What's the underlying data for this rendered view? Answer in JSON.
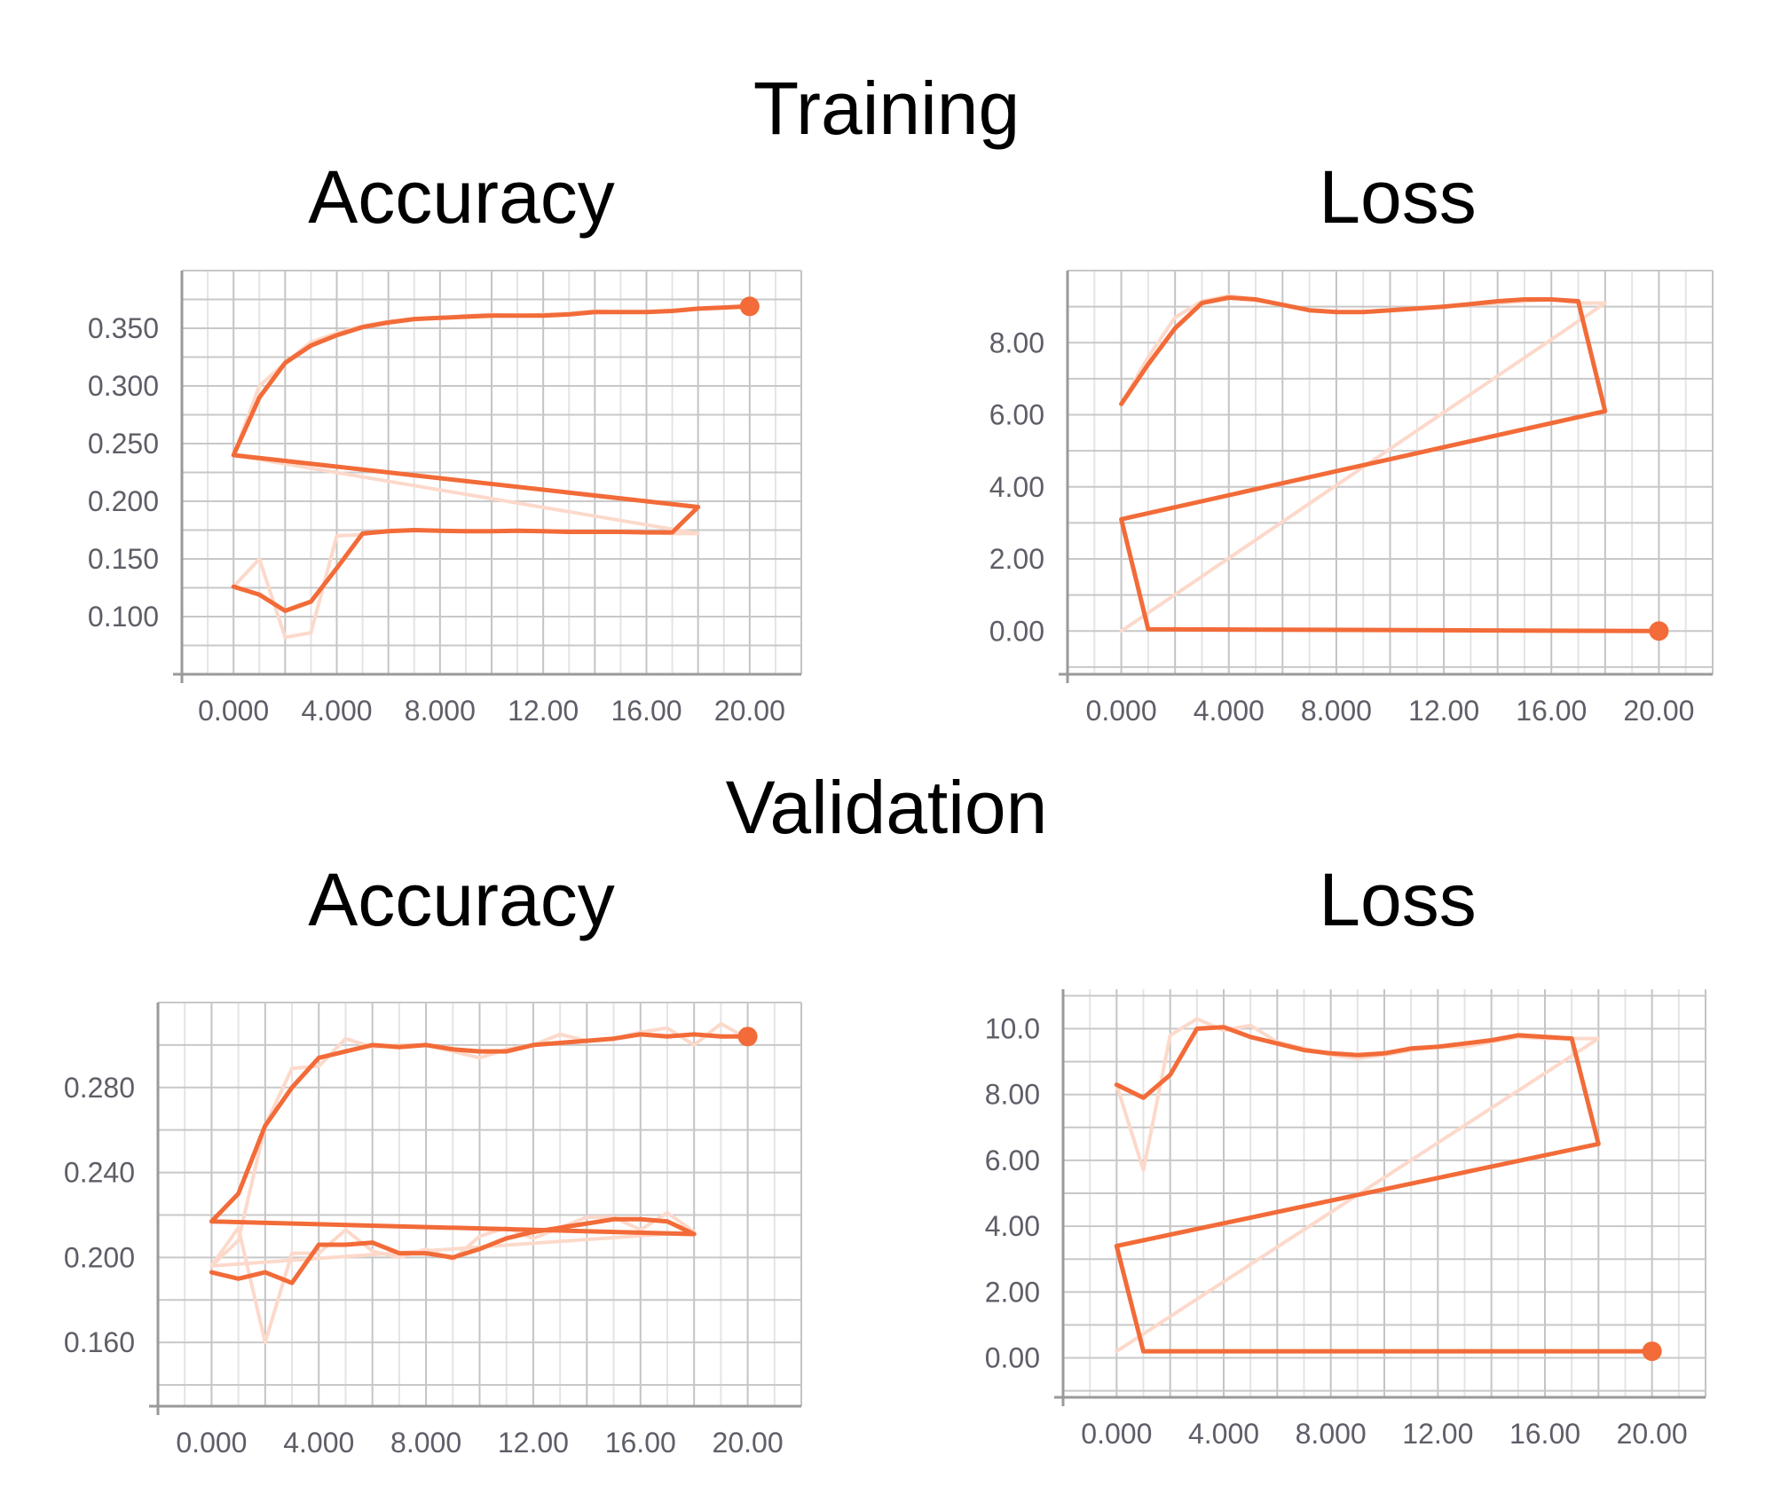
{
  "sections": {
    "training": "Training",
    "validation": "Validation"
  },
  "colors": {
    "accent": "#f26b38",
    "accent_light": "#fcd9cb",
    "grid": "#d0d0d0",
    "axis": "#9a9a9a"
  },
  "chart_data": [
    {
      "type": "line",
      "section": "Training",
      "title": "Accuracy",
      "xlim": [
        -2,
        22
      ],
      "ylim": [
        0.05,
        0.4
      ],
      "xticks": [
        "0.000",
        "4.000",
        "8.000",
        "12.00",
        "16.00",
        "20.00"
      ],
      "yticks": [
        "0.100",
        "0.150",
        "0.200",
        "0.250",
        "0.300",
        "0.350"
      ],
      "grid": true,
      "series": [
        {
          "role": "smoothed",
          "points": [
            [
              0,
              0.126
            ],
            [
              1,
              0.119
            ],
            [
              2,
              0.105
            ],
            [
              3,
              0.113
            ],
            [
              4,
              0.142
            ],
            [
              5,
              0.172
            ],
            [
              6,
              0.174
            ],
            [
              7,
              0.175
            ],
            [
              8,
              0.1745
            ],
            [
              9,
              0.174
            ],
            [
              10,
              0.174
            ],
            [
              11,
              0.1745
            ],
            [
              12,
              0.174
            ],
            [
              13,
              0.1735
            ],
            [
              14,
              0.1735
            ],
            [
              15,
              0.1735
            ],
            [
              16,
              0.173
            ],
            [
              17,
              0.173
            ],
            [
              18,
              0.195
            ],
            [
              0,
              0.24
            ],
            [
              1,
              0.29
            ],
            [
              2,
              0.32
            ],
            [
              3,
              0.335
            ],
            [
              4,
              0.344
            ],
            [
              5,
              0.351
            ],
            [
              6,
              0.355
            ],
            [
              7,
              0.358
            ],
            [
              8,
              0.359
            ],
            [
              9,
              0.36
            ],
            [
              10,
              0.361
            ],
            [
              11,
              0.361
            ],
            [
              12,
              0.361
            ],
            [
              13,
              0.362
            ],
            [
              14,
              0.364
            ],
            [
              15,
              0.364
            ],
            [
              16,
              0.364
            ],
            [
              17,
              0.365
            ],
            [
              18,
              0.367
            ],
            [
              19,
              0.368
            ],
            [
              20,
              0.369
            ]
          ]
        },
        {
          "role": "raw",
          "points": [
            [
              0,
              0.126
            ],
            [
              1,
              0.15
            ],
            [
              2,
              0.082
            ],
            [
              3,
              0.086
            ],
            [
              4,
              0.17
            ],
            [
              5,
              0.171
            ],
            [
              6,
              0.175
            ],
            [
              7,
              0.175
            ],
            [
              8,
              0.174
            ],
            [
              9,
              0.174
            ],
            [
              10,
              0.174
            ],
            [
              11,
              0.175
            ],
            [
              12,
              0.174
            ],
            [
              13,
              0.173
            ],
            [
              14,
              0.173
            ],
            [
              15,
              0.174
            ],
            [
              16,
              0.173
            ],
            [
              17,
              0.172
            ],
            [
              18,
              0.172
            ],
            [
              0,
              0.24
            ],
            [
              1,
              0.3
            ],
            [
              2,
              0.32
            ],
            [
              3,
              0.338
            ],
            [
              4,
              0.346
            ],
            [
              5,
              0.352
            ],
            [
              6,
              0.356
            ],
            [
              7,
              0.358
            ],
            [
              8,
              0.359
            ],
            [
              9,
              0.361
            ],
            [
              10,
              0.362
            ],
            [
              11,
              0.361
            ],
            [
              12,
              0.362
            ],
            [
              13,
              0.363
            ],
            [
              14,
              0.365
            ],
            [
              15,
              0.364
            ],
            [
              16,
              0.364
            ],
            [
              17,
              0.365
            ],
            [
              18,
              0.367
            ],
            [
              19,
              0.368
            ],
            [
              20,
              0.369
            ]
          ]
        }
      ]
    },
    {
      "type": "line",
      "section": "Training",
      "title": "Loss",
      "xlim": [
        -2,
        22
      ],
      "ylim": [
        -1.2,
        10
      ],
      "xticks": [
        "0.000",
        "4.000",
        "8.000",
        "12.00",
        "16.00",
        "20.00"
      ],
      "yticks": [
        "0.00",
        "2.00",
        "4.00",
        "6.00",
        "8.00"
      ],
      "grid": true,
      "series": [
        {
          "role": "smoothed",
          "points": [
            [
              0,
              6.3
            ],
            [
              1,
              7.4
            ],
            [
              2,
              8.4
            ],
            [
              3,
              9.1
            ],
            [
              4,
              9.25
            ],
            [
              5,
              9.2
            ],
            [
              6,
              9.05
            ],
            [
              7,
              8.9
            ],
            [
              8,
              8.85
            ],
            [
              9,
              8.85
            ],
            [
              10,
              8.9
            ],
            [
              11,
              8.95
            ],
            [
              12,
              9.0
            ],
            [
              13,
              9.07
            ],
            [
              14,
              9.15
            ],
            [
              15,
              9.2
            ],
            [
              16,
              9.2
            ],
            [
              17,
              9.15
            ],
            [
              18,
              6.1
            ],
            [
              0,
              3.1
            ],
            [
              1,
              0.05
            ],
            [
              20,
              0.0
            ]
          ]
        },
        {
          "role": "raw",
          "points": [
            [
              0,
              0.0
            ],
            [
              18,
              9.1
            ],
            [
              17,
              9.1
            ],
            [
              16,
              9.2
            ],
            [
              15,
              9.15
            ],
            [
              14,
              9.1
            ],
            [
              13,
              9.05
            ],
            [
              12,
              9.0
            ],
            [
              11,
              8.95
            ],
            [
              10,
              8.9
            ],
            [
              9,
              8.85
            ],
            [
              8,
              8.85
            ],
            [
              7,
              8.9
            ],
            [
              6,
              9.05
            ],
            [
              5,
              9.2
            ],
            [
              4,
              9.3
            ],
            [
              3,
              9.15
            ],
            [
              2,
              8.7
            ],
            [
              1,
              7.6
            ],
            [
              0,
              6.3
            ]
          ]
        }
      ]
    },
    {
      "type": "line",
      "section": "Validation",
      "title": "Accuracy",
      "xlim": [
        -2,
        22
      ],
      "ylim": [
        0.13,
        0.32
      ],
      "xticks": [
        "0.000",
        "4.000",
        "8.000",
        "12.00",
        "16.00",
        "20.00"
      ],
      "yticks": [
        "0.160",
        "0.200",
        "0.240",
        "0.280"
      ],
      "grid": true,
      "series": [
        {
          "role": "smoothed",
          "points": [
            [
              0,
              0.193
            ],
            [
              1,
              0.19
            ],
            [
              2,
              0.193
            ],
            [
              3,
              0.188
            ],
            [
              4,
              0.206
            ],
            [
              5,
              0.206
            ],
            [
              6,
              0.207
            ],
            [
              7,
              0.202
            ],
            [
              8,
              0.202
            ],
            [
              9,
              0.2
            ],
            [
              10,
              0.204
            ],
            [
              11,
              0.209
            ],
            [
              12,
              0.212
            ],
            [
              13,
              0.214
            ],
            [
              14,
              0.216
            ],
            [
              15,
              0.218
            ],
            [
              16,
              0.218
            ],
            [
              17,
              0.217
            ],
            [
              18,
              0.211
            ],
            [
              0,
              0.217
            ],
            [
              1,
              0.23
            ],
            [
              2,
              0.262
            ],
            [
              3,
              0.28
            ],
            [
              4,
              0.294
            ],
            [
              5,
              0.297
            ],
            [
              6,
              0.3
            ],
            [
              7,
              0.299
            ],
            [
              8,
              0.3
            ],
            [
              9,
              0.298
            ],
            [
              10,
              0.297
            ],
            [
              11,
              0.297
            ],
            [
              12,
              0.3
            ],
            [
              13,
              0.301
            ],
            [
              14,
              0.302
            ],
            [
              15,
              0.303
            ],
            [
              16,
              0.305
            ],
            [
              17,
              0.304
            ],
            [
              18,
              0.305
            ],
            [
              19,
              0.304
            ],
            [
              20,
              0.304
            ]
          ]
        },
        {
          "role": "raw",
          "points": [
            [
              0,
              0.196
            ],
            [
              1,
              0.214
            ],
            [
              2,
              0.16
            ],
            [
              3,
              0.202
            ],
            [
              4,
              0.202
            ],
            [
              5,
              0.213
            ],
            [
              6,
              0.203
            ],
            [
              7,
              0.2
            ],
            [
              8,
              0.204
            ],
            [
              9,
              0.199
            ],
            [
              10,
              0.21
            ],
            [
              11,
              0.214
            ],
            [
              12,
              0.209
            ],
            [
              13,
              0.214
            ],
            [
              14,
              0.219
            ],
            [
              15,
              0.219
            ],
            [
              16,
              0.213
            ],
            [
              17,
              0.221
            ],
            [
              18,
              0.212
            ],
            [
              0,
              0.196
            ],
            [
              1,
              0.208
            ],
            [
              2,
              0.262
            ],
            [
              3,
              0.289
            ],
            [
              4,
              0.29
            ],
            [
              5,
              0.303
            ],
            [
              6,
              0.299
            ],
            [
              7,
              0.3
            ],
            [
              8,
              0.3
            ],
            [
              9,
              0.297
            ],
            [
              10,
              0.294
            ],
            [
              11,
              0.298
            ],
            [
              12,
              0.3
            ],
            [
              13,
              0.305
            ],
            [
              14,
              0.302
            ],
            [
              15,
              0.303
            ],
            [
              16,
              0.306
            ],
            [
              17,
              0.308
            ],
            [
              18,
              0.3
            ],
            [
              19,
              0.31
            ],
            [
              20,
              0.303
            ]
          ]
        }
      ]
    },
    {
      "type": "line",
      "section": "Validation",
      "title": "Loss",
      "xlim": [
        -2,
        22
      ],
      "ylim": [
        -1.2,
        11.2
      ],
      "xticks": [
        "0.000",
        "4.000",
        "8.000",
        "12.00",
        "16.00",
        "20.00"
      ],
      "yticks": [
        "0.00",
        "2.00",
        "4.00",
        "6.00",
        "8.00",
        "10.0"
      ],
      "grid": true,
      "series": [
        {
          "role": "smoothed",
          "points": [
            [
              0,
              8.3
            ],
            [
              1,
              7.9
            ],
            [
              2,
              8.6
            ],
            [
              3,
              10.0
            ],
            [
              4,
              10.05
            ],
            [
              5,
              9.75
            ],
            [
              6,
              9.55
            ],
            [
              7,
              9.35
            ],
            [
              8,
              9.25
            ],
            [
              9,
              9.2
            ],
            [
              10,
              9.25
            ],
            [
              11,
              9.4
            ],
            [
              12,
              9.45
            ],
            [
              13,
              9.55
            ],
            [
              14,
              9.65
            ],
            [
              15,
              9.8
            ],
            [
              16,
              9.75
            ],
            [
              17,
              9.7
            ],
            [
              18,
              6.5
            ],
            [
              0,
              3.4
            ],
            [
              1,
              0.2
            ],
            [
              20,
              0.2
            ]
          ]
        },
        {
          "role": "raw",
          "points": [
            [
              0,
              0.2
            ],
            [
              18,
              9.7
            ],
            [
              17,
              9.7
            ],
            [
              16,
              9.7
            ],
            [
              15,
              9.75
            ],
            [
              14,
              9.6
            ],
            [
              13,
              9.45
            ],
            [
              12,
              9.45
            ],
            [
              11,
              9.35
            ],
            [
              10,
              9.2
            ],
            [
              9,
              9.1
            ],
            [
              8,
              9.2
            ],
            [
              7,
              9.4
            ],
            [
              6,
              9.6
            ],
            [
              5,
              10.1
            ],
            [
              4,
              9.95
            ],
            [
              3,
              10.3
            ],
            [
              2,
              9.8
            ],
            [
              1,
              5.7
            ],
            [
              0,
              8.3
            ]
          ]
        }
      ]
    }
  ]
}
